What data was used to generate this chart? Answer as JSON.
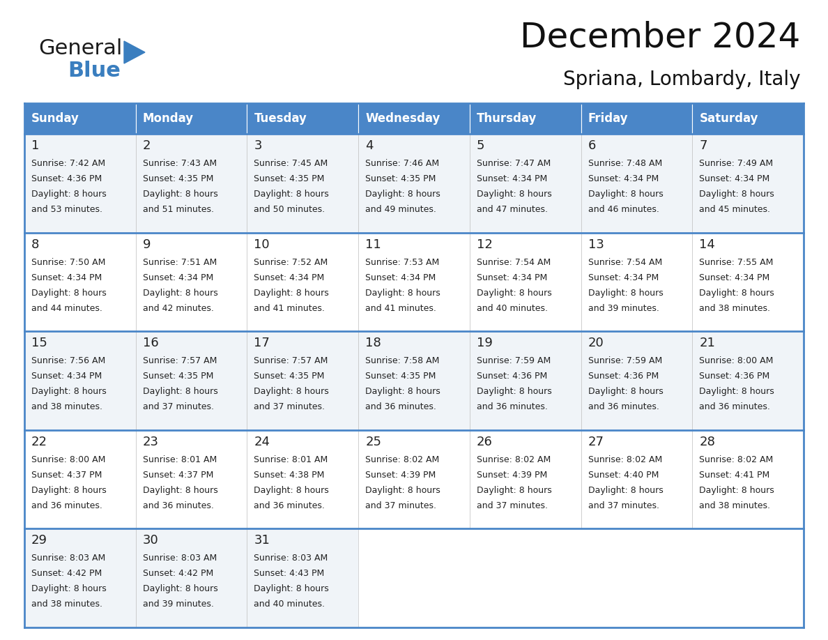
{
  "title": "December 2024",
  "subtitle": "Spriana, Lombardy, Italy",
  "header_color": "#4a86c8",
  "header_text_color": "#FFFFFF",
  "day_names": [
    "Sunday",
    "Monday",
    "Tuesday",
    "Wednesday",
    "Thursday",
    "Friday",
    "Saturday"
  ],
  "bg_color": "#FFFFFF",
  "cell_bg_even": "#f0f4f8",
  "cell_bg_odd": "#FFFFFF",
  "border_color": "#4a86c8",
  "text_color": "#222222",
  "days": [
    {
      "day": 1,
      "col": 0,
      "row": 0,
      "sunrise": "7:42 AM",
      "sunset": "4:36 PM",
      "daylight_h": "8 hours",
      "daylight_m": "53 minutes"
    },
    {
      "day": 2,
      "col": 1,
      "row": 0,
      "sunrise": "7:43 AM",
      "sunset": "4:35 PM",
      "daylight_h": "8 hours",
      "daylight_m": "51 minutes"
    },
    {
      "day": 3,
      "col": 2,
      "row": 0,
      "sunrise": "7:45 AM",
      "sunset": "4:35 PM",
      "daylight_h": "8 hours",
      "daylight_m": "50 minutes"
    },
    {
      "day": 4,
      "col": 3,
      "row": 0,
      "sunrise": "7:46 AM",
      "sunset": "4:35 PM",
      "daylight_h": "8 hours",
      "daylight_m": "49 minutes"
    },
    {
      "day": 5,
      "col": 4,
      "row": 0,
      "sunrise": "7:47 AM",
      "sunset": "4:34 PM",
      "daylight_h": "8 hours",
      "daylight_m": "47 minutes"
    },
    {
      "day": 6,
      "col": 5,
      "row": 0,
      "sunrise": "7:48 AM",
      "sunset": "4:34 PM",
      "daylight_h": "8 hours",
      "daylight_m": "46 minutes"
    },
    {
      "day": 7,
      "col": 6,
      "row": 0,
      "sunrise": "7:49 AM",
      "sunset": "4:34 PM",
      "daylight_h": "8 hours",
      "daylight_m": "45 minutes"
    },
    {
      "day": 8,
      "col": 0,
      "row": 1,
      "sunrise": "7:50 AM",
      "sunset": "4:34 PM",
      "daylight_h": "8 hours",
      "daylight_m": "44 minutes"
    },
    {
      "day": 9,
      "col": 1,
      "row": 1,
      "sunrise": "7:51 AM",
      "sunset": "4:34 PM",
      "daylight_h": "8 hours",
      "daylight_m": "42 minutes"
    },
    {
      "day": 10,
      "col": 2,
      "row": 1,
      "sunrise": "7:52 AM",
      "sunset": "4:34 PM",
      "daylight_h": "8 hours",
      "daylight_m": "41 minutes"
    },
    {
      "day": 11,
      "col": 3,
      "row": 1,
      "sunrise": "7:53 AM",
      "sunset": "4:34 PM",
      "daylight_h": "8 hours",
      "daylight_m": "41 minutes"
    },
    {
      "day": 12,
      "col": 4,
      "row": 1,
      "sunrise": "7:54 AM",
      "sunset": "4:34 PM",
      "daylight_h": "8 hours",
      "daylight_m": "40 minutes"
    },
    {
      "day": 13,
      "col": 5,
      "row": 1,
      "sunrise": "7:54 AM",
      "sunset": "4:34 PM",
      "daylight_h": "8 hours",
      "daylight_m": "39 minutes"
    },
    {
      "day": 14,
      "col": 6,
      "row": 1,
      "sunrise": "7:55 AM",
      "sunset": "4:34 PM",
      "daylight_h": "8 hours",
      "daylight_m": "38 minutes"
    },
    {
      "day": 15,
      "col": 0,
      "row": 2,
      "sunrise": "7:56 AM",
      "sunset": "4:34 PM",
      "daylight_h": "8 hours",
      "daylight_m": "38 minutes"
    },
    {
      "day": 16,
      "col": 1,
      "row": 2,
      "sunrise": "7:57 AM",
      "sunset": "4:35 PM",
      "daylight_h": "8 hours",
      "daylight_m": "37 minutes"
    },
    {
      "day": 17,
      "col": 2,
      "row": 2,
      "sunrise": "7:57 AM",
      "sunset": "4:35 PM",
      "daylight_h": "8 hours",
      "daylight_m": "37 minutes"
    },
    {
      "day": 18,
      "col": 3,
      "row": 2,
      "sunrise": "7:58 AM",
      "sunset": "4:35 PM",
      "daylight_h": "8 hours",
      "daylight_m": "36 minutes"
    },
    {
      "day": 19,
      "col": 4,
      "row": 2,
      "sunrise": "7:59 AM",
      "sunset": "4:36 PM",
      "daylight_h": "8 hours",
      "daylight_m": "36 minutes"
    },
    {
      "day": 20,
      "col": 5,
      "row": 2,
      "sunrise": "7:59 AM",
      "sunset": "4:36 PM",
      "daylight_h": "8 hours",
      "daylight_m": "36 minutes"
    },
    {
      "day": 21,
      "col": 6,
      "row": 2,
      "sunrise": "8:00 AM",
      "sunset": "4:36 PM",
      "daylight_h": "8 hours",
      "daylight_m": "36 minutes"
    },
    {
      "day": 22,
      "col": 0,
      "row": 3,
      "sunrise": "8:00 AM",
      "sunset": "4:37 PM",
      "daylight_h": "8 hours",
      "daylight_m": "36 minutes"
    },
    {
      "day": 23,
      "col": 1,
      "row": 3,
      "sunrise": "8:01 AM",
      "sunset": "4:37 PM",
      "daylight_h": "8 hours",
      "daylight_m": "36 minutes"
    },
    {
      "day": 24,
      "col": 2,
      "row": 3,
      "sunrise": "8:01 AM",
      "sunset": "4:38 PM",
      "daylight_h": "8 hours",
      "daylight_m": "36 minutes"
    },
    {
      "day": 25,
      "col": 3,
      "row": 3,
      "sunrise": "8:02 AM",
      "sunset": "4:39 PM",
      "daylight_h": "8 hours",
      "daylight_m": "37 minutes"
    },
    {
      "day": 26,
      "col": 4,
      "row": 3,
      "sunrise": "8:02 AM",
      "sunset": "4:39 PM",
      "daylight_h": "8 hours",
      "daylight_m": "37 minutes"
    },
    {
      "day": 27,
      "col": 5,
      "row": 3,
      "sunrise": "8:02 AM",
      "sunset": "4:40 PM",
      "daylight_h": "8 hours",
      "daylight_m": "37 minutes"
    },
    {
      "day": 28,
      "col": 6,
      "row": 3,
      "sunrise": "8:02 AM",
      "sunset": "4:41 PM",
      "daylight_h": "8 hours",
      "daylight_m": "38 minutes"
    },
    {
      "day": 29,
      "col": 0,
      "row": 4,
      "sunrise": "8:03 AM",
      "sunset": "4:42 PM",
      "daylight_h": "8 hours",
      "daylight_m": "38 minutes"
    },
    {
      "day": 30,
      "col": 1,
      "row": 4,
      "sunrise": "8:03 AM",
      "sunset": "4:42 PM",
      "daylight_h": "8 hours",
      "daylight_m": "39 minutes"
    },
    {
      "day": 31,
      "col": 2,
      "row": 4,
      "sunrise": "8:03 AM",
      "sunset": "4:43 PM",
      "daylight_h": "8 hours",
      "daylight_m": "40 minutes"
    }
  ],
  "logo_color_general": "#1a1a1a",
  "logo_color_blue": "#3A7EBF",
  "logo_triangle_color": "#3A7EBF",
  "title_fontsize": 36,
  "subtitle_fontsize": 20,
  "header_fontsize": 12,
  "day_num_fontsize": 13,
  "cell_text_fontsize": 9
}
